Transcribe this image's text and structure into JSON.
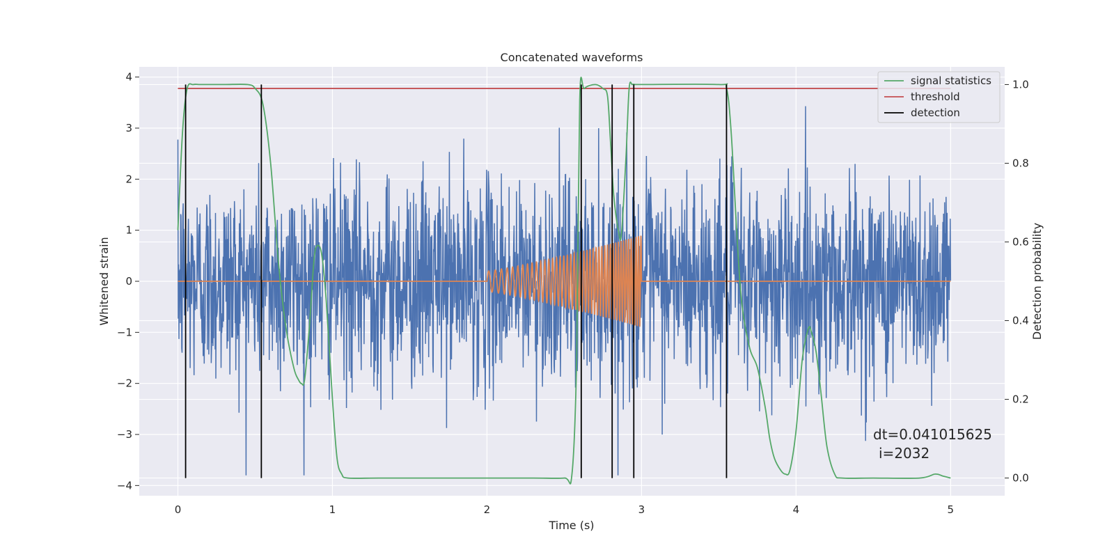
{
  "chart_data": {
    "type": "line",
    "title": "Concatenated waveforms",
    "xlabel": "Time (s)",
    "ylabel": "Whitened strain",
    "ylabel_right": "Detection probability",
    "xlim": [
      -0.25,
      5.35
    ],
    "ylim": [
      -4.2,
      4.2
    ],
    "ylim_right": [
      -0.045,
      1.045
    ],
    "x_ticks": [
      0,
      1,
      2,
      3,
      4,
      5
    ],
    "y_ticks": [
      -4,
      -3,
      -2,
      -1,
      0,
      1,
      2,
      3,
      4
    ],
    "y_ticks_right": [
      0.0,
      0.2,
      0.4,
      0.6,
      0.8,
      1.0
    ],
    "x_tick_labels": [
      "0",
      "1",
      "2",
      "3",
      "4",
      "5"
    ],
    "y_tick_labels": [
      "−4",
      "−3",
      "−2",
      "−1",
      "0",
      "1",
      "2",
      "3",
      "4"
    ],
    "y_tick_labels_right": [
      "0.0",
      "0.2",
      "0.4",
      "0.6",
      "0.8",
      "1.0"
    ],
    "grid": true,
    "legend_position": "top-right",
    "background": "#eaeaf2",
    "series": [
      {
        "name": "",
        "axis": "left",
        "kind": "noise",
        "color": "#4c72b0",
        "x_range": [
          0,
          5
        ],
        "sigma": 1.0
      },
      {
        "name": "",
        "axis": "left",
        "kind": "chirp",
        "color": "#dd8452",
        "x_range": [
          0,
          5
        ],
        "active_range": [
          2,
          3
        ],
        "amplitude_start": 0.2,
        "amplitude_end": 0.9,
        "frequency_start_hz": 22,
        "frequency_end_hz": 65
      },
      {
        "name": "signal statistics",
        "axis": "right",
        "color": "#55a868",
        "x": [
          0.0,
          0.03,
          0.06,
          0.1,
          0.15,
          0.3,
          0.45,
          0.5,
          0.55,
          0.6,
          0.65,
          0.7,
          0.75,
          0.78,
          0.8,
          0.82,
          0.85,
          0.88,
          0.9,
          0.93,
          0.96,
          1.0,
          1.03,
          1.06,
          1.1,
          1.3,
          1.6,
          2.0,
          2.3,
          2.5,
          2.55,
          2.58,
          2.6,
          2.63,
          2.7,
          2.75,
          2.78,
          2.8,
          2.82,
          2.85,
          2.87,
          2.9,
          2.92,
          2.94,
          2.96,
          3.0,
          3.5,
          3.55,
          3.58,
          3.62,
          3.65,
          3.7,
          3.75,
          3.8,
          3.83,
          3.86,
          3.9,
          3.93,
          3.96,
          4.0,
          4.04,
          4.08,
          4.1,
          4.13,
          4.16,
          4.2,
          4.25,
          4.3,
          4.5,
          4.8,
          4.9,
          4.95,
          5.0
        ],
        "y": [
          0.63,
          0.88,
          0.99,
          1.0,
          1.0,
          1.0,
          1.0,
          0.99,
          0.95,
          0.8,
          0.55,
          0.38,
          0.28,
          0.25,
          0.24,
          0.25,
          0.38,
          0.55,
          0.59,
          0.57,
          0.45,
          0.2,
          0.05,
          0.01,
          0.0,
          0.0,
          0.0,
          0.0,
          0.0,
          0.0,
          0.01,
          0.3,
          0.96,
          0.99,
          1.0,
          0.99,
          0.97,
          0.85,
          0.72,
          0.63,
          0.62,
          0.82,
          0.99,
          1.0,
          1.0,
          1.0,
          1.0,
          0.99,
          0.88,
          0.6,
          0.44,
          0.33,
          0.28,
          0.18,
          0.1,
          0.05,
          0.02,
          0.01,
          0.02,
          0.12,
          0.3,
          0.38,
          0.37,
          0.32,
          0.22,
          0.08,
          0.01,
          0.0,
          0.0,
          0.0,
          0.01,
          0.005,
          0.0
        ]
      },
      {
        "name": "threshold",
        "axis": "right",
        "color": "#c44e52",
        "x": [
          0,
          5
        ],
        "y": [
          0.99,
          0.99
        ]
      },
      {
        "name": "detection",
        "axis": "right",
        "color": "#000000",
        "kind": "vlines",
        "x": [
          0.05,
          0.54,
          2.61,
          2.81,
          2.95,
          3.55
        ],
        "y_range": [
          0.0,
          1.0
        ]
      }
    ],
    "annotation": {
      "line1": "dt=0.041015625",
      "line2": "i=2032"
    }
  }
}
